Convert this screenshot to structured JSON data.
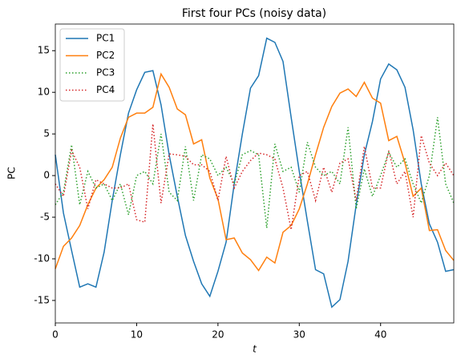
{
  "chart_data": {
    "type": "line",
    "title": "First four PCs (noisy data)",
    "xlabel": "t",
    "ylabel": "PC",
    "x": [
      0,
      1,
      2,
      3,
      4,
      5,
      6,
      7,
      8,
      9,
      10,
      11,
      12,
      13,
      14,
      15,
      16,
      17,
      18,
      19,
      20,
      21,
      22,
      23,
      24,
      25,
      26,
      27,
      28,
      29,
      30,
      31,
      32,
      33,
      34,
      35,
      36,
      37,
      38,
      39,
      40,
      41,
      42,
      43,
      44,
      45,
      46,
      47,
      48,
      49
    ],
    "series": [
      {
        "name": "PC1",
        "color": "#1f77b4",
        "linestyle": "solid",
        "values": [
          2.5,
          -4.5,
          -9,
          -13.4,
          -13,
          -13.4,
          -9.2,
          -3,
          2.5,
          7.5,
          10.3,
          12.4,
          12.6,
          8.5,
          2.5,
          -2.5,
          -7.2,
          -10.3,
          -13,
          -14.5,
          -11.5,
          -8,
          -1,
          5,
          10.5,
          12,
          16.5,
          16,
          13.7,
          7,
          0.5,
          -5.5,
          -11.3,
          -11.8,
          -15.8,
          -14.9,
          -10.3,
          -3.5,
          2.5,
          6.5,
          11.6,
          13.4,
          12.7,
          10.6,
          5.5,
          -1,
          -5.8,
          -8,
          -11.5,
          -11.3
        ]
      },
      {
        "name": "PC2",
        "color": "#ff7f0e",
        "linestyle": "solid",
        "values": [
          -11.2,
          -8.5,
          -7.5,
          -6,
          -3.5,
          -1.5,
          -0.5,
          1,
          4.5,
          7,
          7.5,
          7.5,
          8.2,
          12.2,
          10.6,
          8,
          7.3,
          3.8,
          4.3,
          -0.3,
          -2.8,
          -7.7,
          -7.5,
          -9.3,
          -10.1,
          -11.4,
          -9.8,
          -10.5,
          -6.8,
          -6,
          -4,
          -1,
          2.5,
          5.8,
          8.3,
          9.9,
          10.4,
          9.5,
          11.2,
          9.3,
          8.7,
          4.2,
          4.7,
          1.5,
          -2.5,
          -1.5,
          -6.6,
          -6.5,
          -9,
          -10.2
        ]
      },
      {
        "name": "PC3",
        "color": "#2ca02c",
        "linestyle": "dotted",
        "values": [
          -3.5,
          -2,
          3.7,
          -3.5,
          0.5,
          -1.5,
          -1,
          -3,
          -1,
          -4.7,
          0,
          0.5,
          -1,
          5,
          -2,
          -3,
          3.5,
          -3,
          2.5,
          2,
          0,
          1,
          -1,
          2.5,
          3,
          2.5,
          -6.3,
          3.8,
          0.5,
          1,
          -2,
          4,
          1,
          0,
          0.5,
          -1,
          5.8,
          -4,
          0.8,
          -2.5,
          0,
          2.8,
          1,
          2,
          -1,
          -3.3,
          0,
          7,
          -1,
          -3.3
        ]
      },
      {
        "name": "PC4",
        "color": "#d62728",
        "linestyle": "dotted",
        "values": [
          -1,
          -2.5,
          3,
          1,
          -4,
          -0.5,
          -1,
          -1.5,
          -1.5,
          -1,
          -5.3,
          -5.6,
          6.2,
          -3.3,
          2.6,
          2.5,
          2.3,
          1.3,
          1.3,
          0.5,
          -3,
          2.3,
          -1.5,
          0.5,
          1.8,
          2.7,
          2.5,
          2,
          -1.5,
          -6.5,
          0,
          0.5,
          -3,
          1,
          -2,
          1.5,
          2,
          -3,
          3.5,
          -1.5,
          -1.5,
          3,
          -1,
          0.5,
          -5,
          4.8,
          1.5,
          0,
          1.5,
          0
        ]
      }
    ],
    "xlim": [
      0,
      49
    ],
    "xticks": [
      0,
      10,
      20,
      30,
      40
    ],
    "ylim": [
      -17.7,
      18.2
    ],
    "yticks": [
      -15,
      -10,
      -5,
      0,
      5,
      10,
      15
    ],
    "legend": "upper left"
  }
}
